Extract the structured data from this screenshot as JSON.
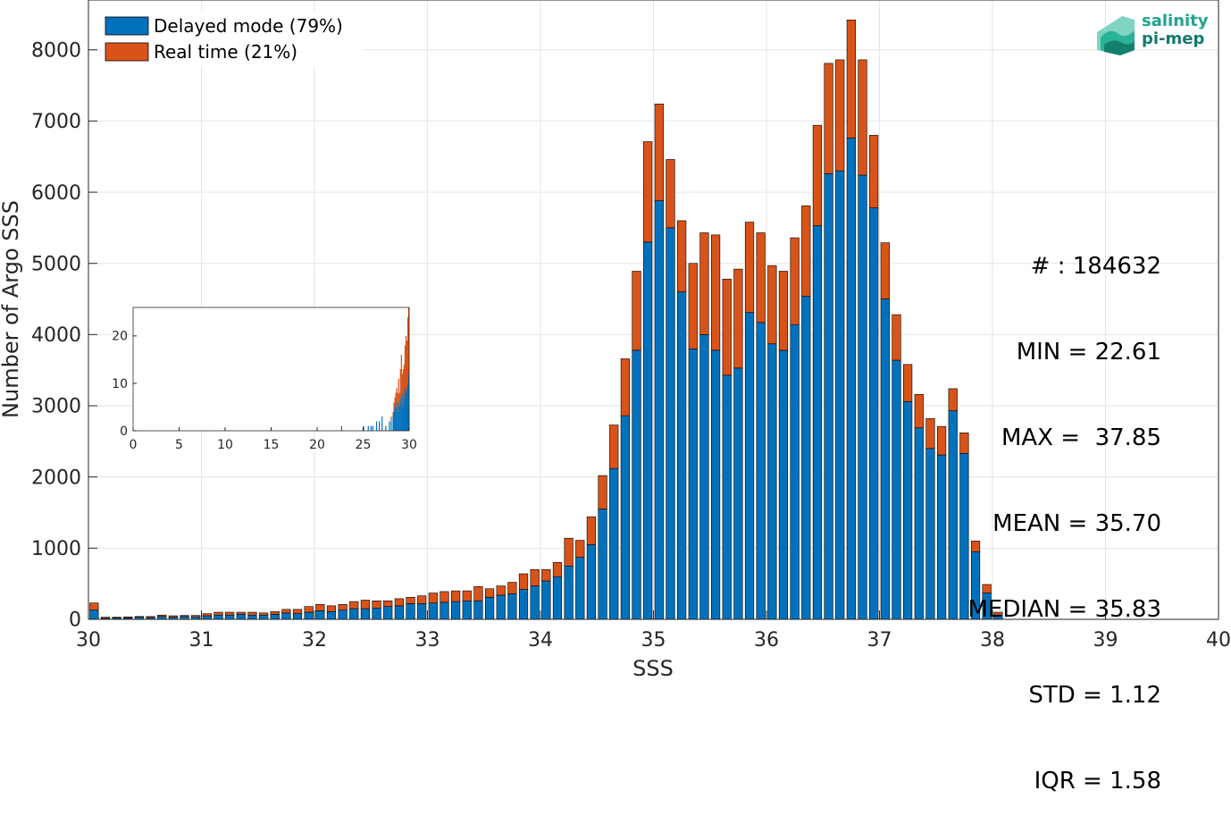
{
  "chart_data": [
    {
      "type": "bar",
      "stacked": true,
      "xlabel": "SSS",
      "ylabel": "Number of Argo SSS",
      "xlim": [
        30,
        40
      ],
      "ylim": [
        0,
        8700
      ],
      "x_ticks": [
        "30",
        "31",
        "32",
        "33",
        "34",
        "35",
        "36",
        "37",
        "38",
        "39",
        "40"
      ],
      "y_ticks": [
        "0",
        "1000",
        "2000",
        "3000",
        "4000",
        "5000",
        "6000",
        "7000",
        "8000"
      ],
      "grid": true,
      "legend_position": "top-left",
      "bin_width": 0.1,
      "x": [
        30.0,
        30.1,
        30.2,
        30.3,
        30.4,
        30.5,
        30.6,
        30.7,
        30.8,
        30.9,
        31.0,
        31.1,
        31.2,
        31.3,
        31.4,
        31.5,
        31.6,
        31.7,
        31.8,
        31.9,
        32.0,
        32.1,
        32.2,
        32.3,
        32.4,
        32.5,
        32.6,
        32.7,
        32.8,
        32.9,
        33.0,
        33.1,
        33.2,
        33.3,
        33.4,
        33.5,
        33.6,
        33.7,
        33.8,
        33.9,
        34.0,
        34.1,
        34.2,
        34.3,
        34.4,
        34.5,
        34.6,
        34.7,
        34.8,
        34.9,
        35.0,
        35.1,
        35.2,
        35.3,
        35.4,
        35.5,
        35.6,
        35.7,
        35.8,
        35.9,
        36.0,
        36.1,
        36.2,
        36.3,
        36.4,
        36.5,
        36.6,
        36.7,
        36.8,
        36.9,
        37.0,
        37.1,
        37.2,
        37.3,
        37.4,
        37.5,
        37.6,
        37.7,
        37.8,
        37.9,
        38.0,
        38.1,
        38.2,
        38.3,
        38.4,
        38.5,
        38.6,
        38.7,
        38.8,
        38.9,
        39.0,
        39.1,
        39.2,
        39.3,
        39.4,
        39.5,
        39.6,
        39.7,
        39.8,
        39.9
      ],
      "series": [
        {
          "name": "Delayed mode (79%)",
          "color": "#0072bd",
          "values": [
            130,
            15,
            20,
            20,
            30,
            25,
            40,
            30,
            40,
            35,
            50,
            60,
            60,
            70,
            60,
            60,
            70,
            90,
            80,
            100,
            120,
            110,
            130,
            150,
            150,
            160,
            180,
            190,
            220,
            220,
            230,
            240,
            250,
            260,
            260,
            310,
            340,
            360,
            420,
            470,
            540,
            600,
            750,
            870,
            1050,
            1550,
            2120,
            2860,
            3780,
            5300,
            5880,
            5500,
            4600,
            3800,
            4000,
            3780,
            3430,
            3530,
            4310,
            4170,
            3870,
            3780,
            4140,
            4540,
            5530,
            6260,
            6300,
            6760,
            6240,
            5780,
            4500,
            3640,
            3060,
            2690,
            2400,
            2310,
            2930,
            2330,
            950,
            370,
            60,
            0,
            0,
            0,
            0,
            0,
            0,
            0,
            0,
            0,
            0,
            0,
            0,
            0,
            0,
            0,
            0,
            0,
            0,
            0
          ]
        },
        {
          "name": "Real time (21%)",
          "color": "#d95319",
          "values": [
            100,
            15,
            10,
            15,
            10,
            15,
            20,
            20,
            15,
            20,
            30,
            40,
            40,
            30,
            40,
            30,
            40,
            50,
            60,
            80,
            90,
            80,
            80,
            100,
            120,
            100,
            80,
            100,
            90,
            110,
            140,
            150,
            150,
            140,
            200,
            120,
            130,
            160,
            220,
            230,
            160,
            200,
            390,
            240,
            390,
            470,
            610,
            800,
            1110,
            1410,
            1360,
            960,
            1000,
            1200,
            1430,
            1620,
            1350,
            1390,
            1270,
            1260,
            1100,
            1110,
            1220,
            1270,
            1410,
            1550,
            1560,
            1660,
            1620,
            1020,
            790,
            640,
            520,
            470,
            420,
            400,
            310,
            290,
            150,
            120,
            40,
            0,
            0,
            0,
            0,
            0,
            0,
            0,
            0,
            0,
            0,
            0,
            0,
            0,
            0,
            0,
            0,
            0,
            0,
            0
          ]
        }
      ]
    },
    {
      "type": "bar",
      "stacked": true,
      "xlim": [
        0,
        30
      ],
      "ylim": [
        0,
        26
      ],
      "x_ticks": [
        "0",
        "5",
        "10",
        "15",
        "20",
        "25",
        "30"
      ],
      "y_ticks": [
        "0",
        "10",
        "20"
      ],
      "bin_width": 0.1,
      "x": [
        22.6,
        25.0,
        25.5,
        25.8,
        26.0,
        26.4,
        26.7,
        27.0,
        27.4,
        27.8,
        28.0,
        28.2,
        28.3,
        28.4,
        28.5,
        28.6,
        28.7,
        28.8,
        28.9,
        29.0,
        29.1,
        29.2,
        29.3,
        29.4,
        29.5,
        29.6,
        29.7,
        29.8,
        29.9
      ],
      "series": [
        {
          "name": "Delayed mode (79%)",
          "color": "#0072bd",
          "values": [
            1,
            1,
            1,
            1,
            1,
            2,
            2,
            3,
            1,
            2,
            2,
            3,
            4,
            5,
            5,
            6,
            4,
            6,
            5,
            7,
            6,
            8,
            5,
            7,
            9,
            8,
            9,
            10,
            12
          ]
        },
        {
          "name": "Real time (21%)",
          "color": "#d95319",
          "values": [
            0,
            0,
            0,
            0,
            0,
            0,
            0,
            0,
            0,
            0,
            1,
            1,
            2,
            2,
            3,
            3,
            4,
            5,
            3,
            6,
            10,
            4,
            8,
            7,
            9,
            12,
            10,
            14,
            14
          ]
        }
      ]
    }
  ],
  "stats": {
    "count": "# : 184632",
    "min": "MIN = 22.61",
    "max": "MAX =  37.85",
    "mean": "MEAN = 35.70",
    "median": "MEDIAN = 35.83",
    "std": "STD = 1.12",
    "iqr": "IQR = 1.58"
  },
  "logo": {
    "line1": "salinity",
    "line2": "pi-mep"
  },
  "colors": {
    "delayed": "#0072bd",
    "realtime": "#d95319",
    "grid": "#e6e6e6",
    "axis": "#262626"
  }
}
